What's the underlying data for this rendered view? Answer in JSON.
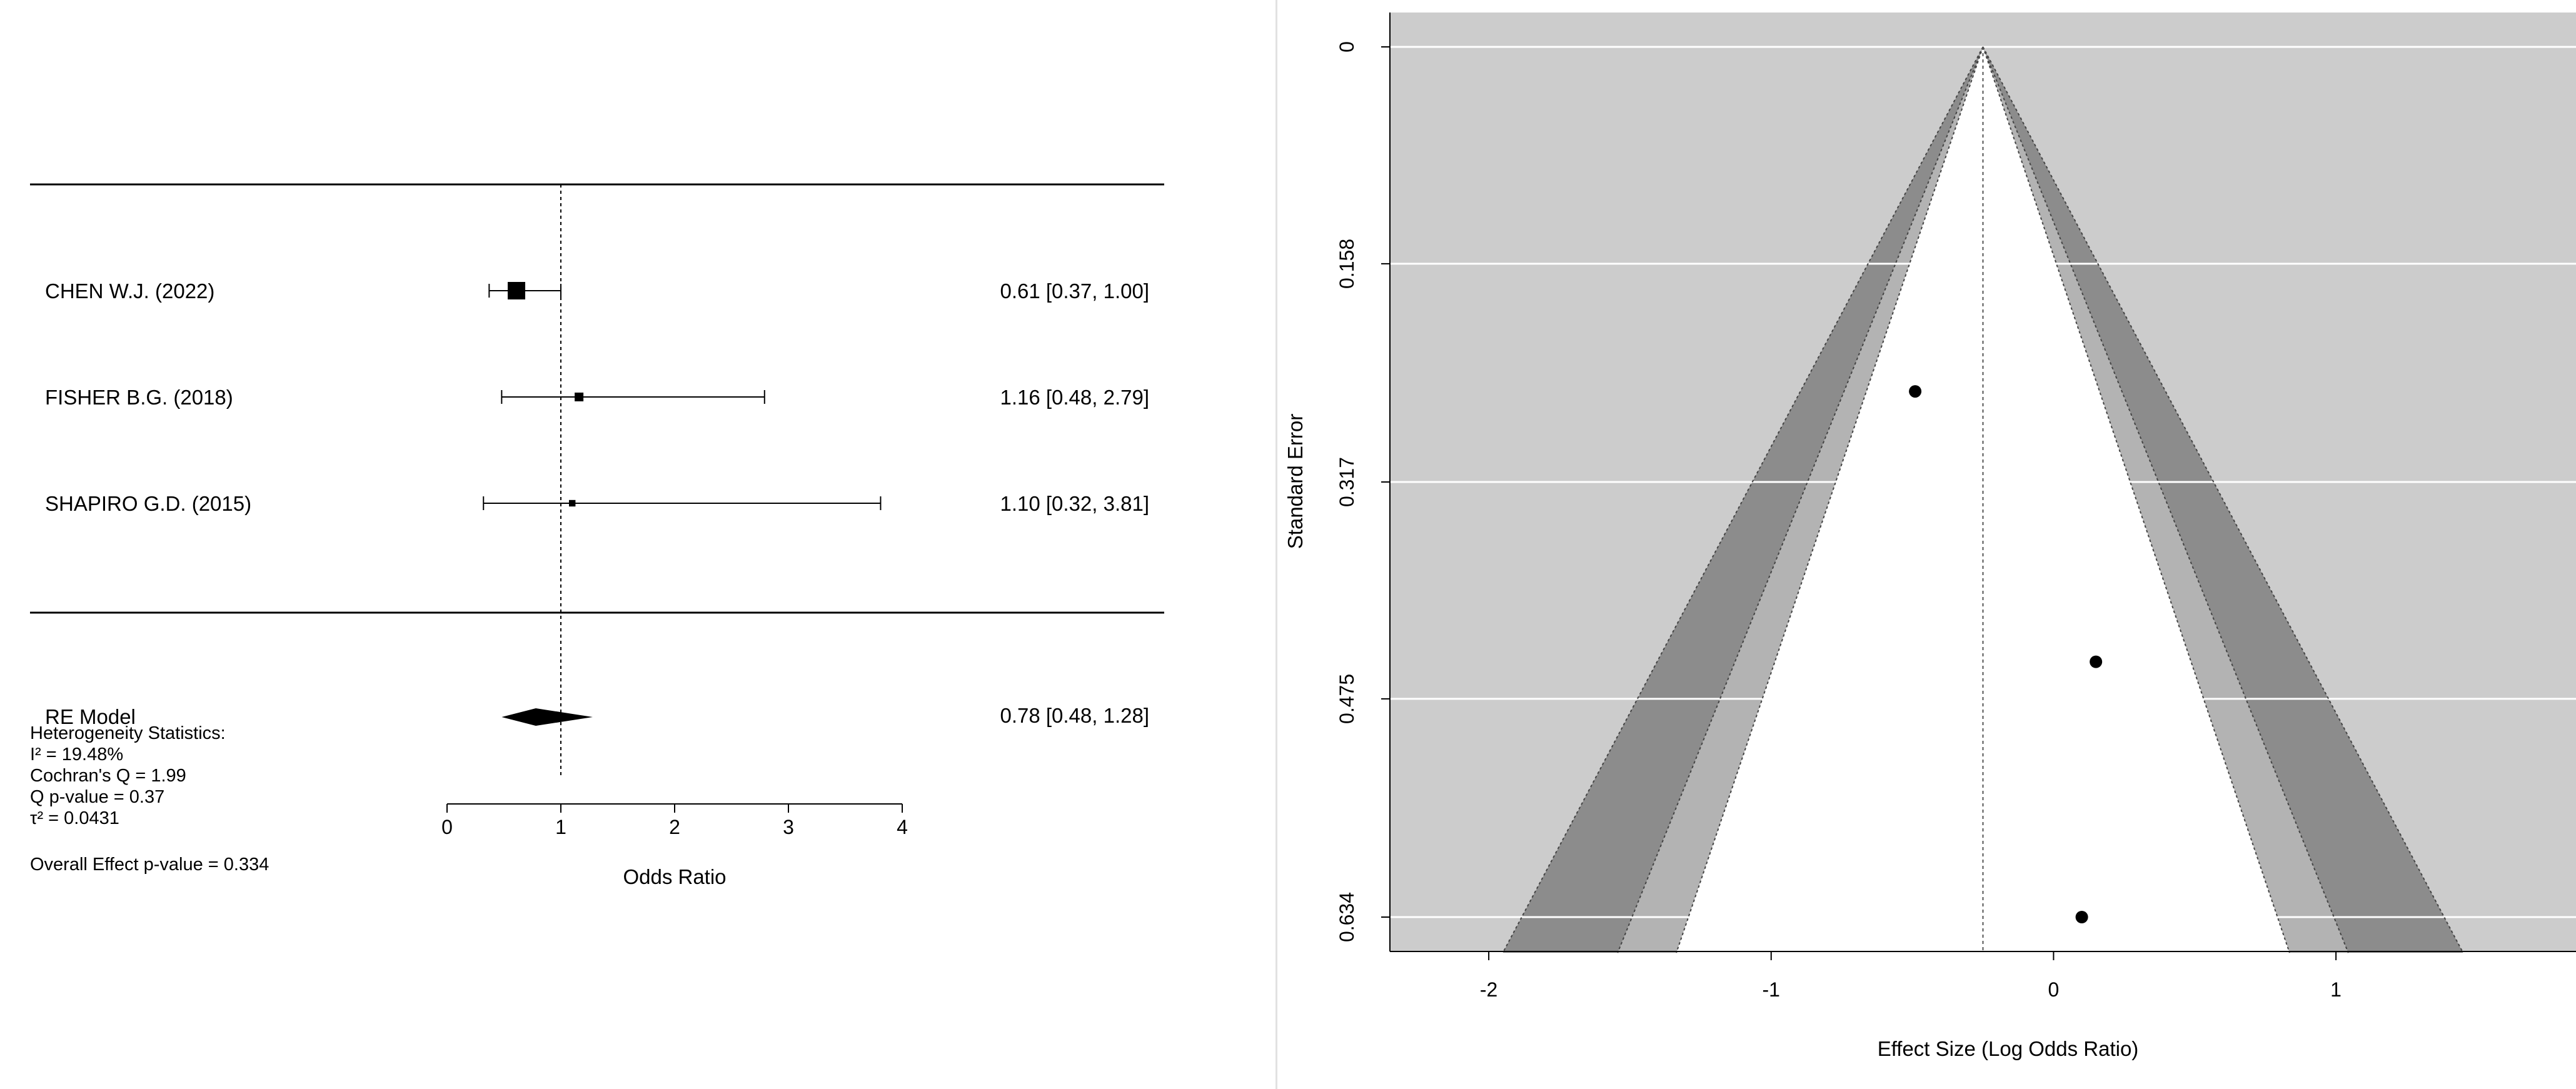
{
  "chart_data": [
    {
      "type": "forest",
      "xlabel": "Odds Ratio",
      "xlim": [
        0,
        4
      ],
      "xticks": [
        0,
        1,
        2,
        3,
        4
      ],
      "null_line": 1,
      "studies": [
        {
          "label": "CHEN W.J. (2022)",
          "estimate": 0.61,
          "lower": 0.37,
          "upper": 1.0,
          "ci_text": "0.61 [0.37, 1.00]",
          "weight": 1.0
        },
        {
          "label": "FISHER B.G. (2018)",
          "estimate": 1.16,
          "lower": 0.48,
          "upper": 2.79,
          "ci_text": "1.16 [0.48, 2.79]",
          "weight": 0.3
        },
        {
          "label": "SHAPIRO G.D. (2015)",
          "estimate": 1.1,
          "lower": 0.32,
          "upper": 3.81,
          "ci_text": "1.10 [0.32, 3.81]",
          "weight": 0.12
        }
      ],
      "summary": {
        "label": "RE Model",
        "estimate": 0.78,
        "lower": 0.48,
        "upper": 1.28,
        "ci_text": "0.78 [0.48, 1.28]"
      },
      "heterogeneity": {
        "heading": "Heterogeneity Statistics:",
        "lines": [
          "I² = 19.48%",
          "Cochran's Q = 1.99",
          "Q p-value = 0.37",
          "τ² = 0.0431"
        ]
      },
      "overall_effect": "Overall Effect p-value = 0.334"
    },
    {
      "type": "funnel",
      "xlabel": "Effect Size (Log Odds Ratio)",
      "ylabel": "Standard Error",
      "xlim": [
        -2.35,
        1.85
      ],
      "ylim": [
        0,
        0.66
      ],
      "xticks": [
        -2,
        -1,
        0,
        1
      ],
      "yticks": [
        0,
        0.158,
        0.317,
        0.475,
        0.634
      ],
      "ytick_labels": [
        "0",
        "0.158",
        "0.317",
        "0.475",
        "0.634"
      ],
      "center": -0.25,
      "contour_z": [
        1.645,
        1.96,
        2.576
      ],
      "grid": true,
      "colors": {
        "background": "#cccccc",
        "region_90": "#ffffff",
        "region_95": "#b3b3b3",
        "region_99": "#8c8c8c",
        "grid": "#ffffff"
      },
      "points": [
        {
          "x": -0.49,
          "y": 0.251
        },
        {
          "x": 0.15,
          "y": 0.448
        },
        {
          "x": 0.1,
          "y": 0.634
        }
      ]
    }
  ]
}
